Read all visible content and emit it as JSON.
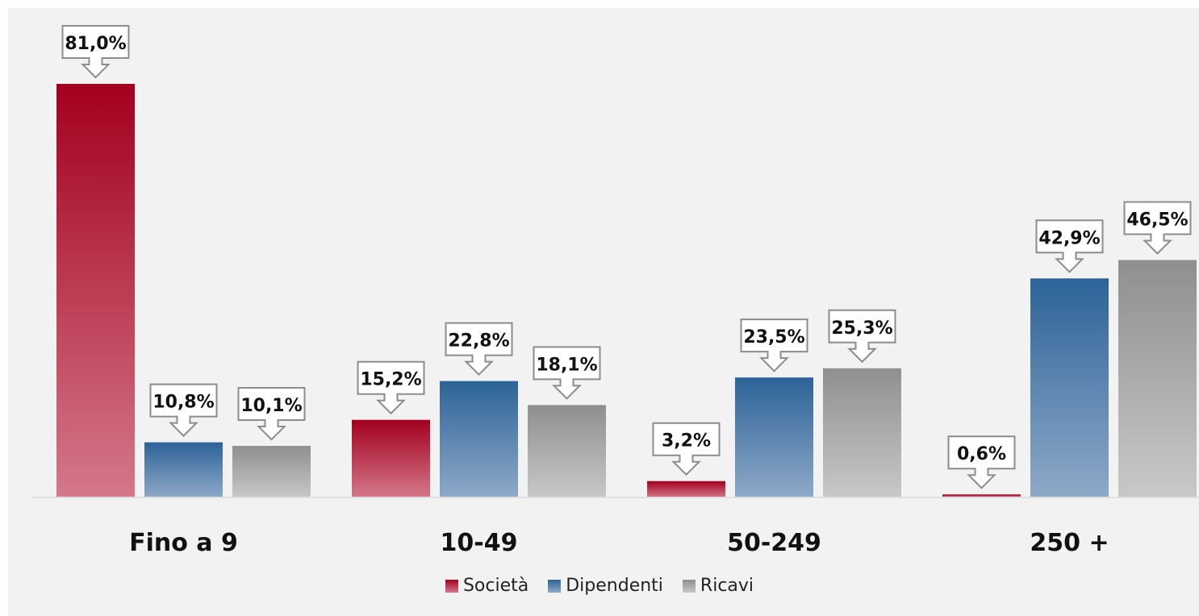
{
  "chart_data": {
    "type": "bar",
    "categories": [
      "Fino a 9",
      "10-49",
      "50-249",
      "250 +"
    ],
    "series": [
      {
        "name": "Società",
        "values": [
          81.0,
          15.2,
          3.2,
          0.6
        ]
      },
      {
        "name": "Dipendenti",
        "values": [
          10.8,
          22.8,
          23.5,
          42.9
        ]
      },
      {
        "name": "Ricavi",
        "values": [
          10.1,
          18.1,
          25.3,
          46.5
        ]
      }
    ],
    "data_labels": [
      [
        "81,0%",
        "15,2%",
        "3,2%",
        "0,6%"
      ],
      [
        "10,8%",
        "22,8%",
        "23,5%",
        "42,9%"
      ],
      [
        "10,1%",
        "18,1%",
        "25,3%",
        "46,5%"
      ]
    ],
    "ylim": [
      0,
      81
    ],
    "grid": false,
    "legend_position": "bottom-center",
    "colors": {
      "Società": [
        "#a3001e",
        "#d4788a"
      ],
      "Dipendenti": [
        "#2d6398",
        "#8ea9c8"
      ],
      "Ricavi": [
        "#8f8f8f",
        "#c8c8c8"
      ]
    }
  }
}
